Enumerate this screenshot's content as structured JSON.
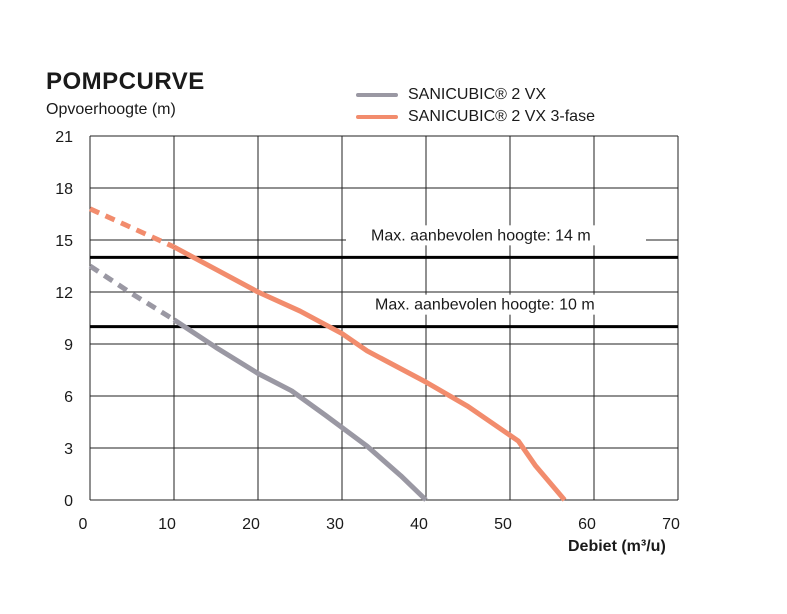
{
  "chart_data": {
    "type": "line",
    "title": "POMPCURVE",
    "ylabel": "Opvoerhoogte (m)",
    "xlabel": "Debiet (m³/u)",
    "xlim": [
      0,
      70
    ],
    "ylim": [
      0,
      21
    ],
    "xticks": [
      0,
      10,
      20,
      30,
      40,
      50,
      60,
      70
    ],
    "yticks": [
      0,
      3,
      6,
      9,
      12,
      15,
      18,
      21
    ],
    "grid": true,
    "legend_position": "top-right",
    "series": [
      {
        "name": "SANICUBIC® 2 VX",
        "color": "#9a98a3",
        "dashed_until_x": 10,
        "x": [
          0,
          5,
          10,
          15,
          20,
          24,
          28,
          33,
          37,
          40
        ],
        "y": [
          13.5,
          11.9,
          10.4,
          8.8,
          7.3,
          6.3,
          4.9,
          3.1,
          1.4,
          0
        ]
      },
      {
        "name": "SANICUBIC® 2 VX 3-fase",
        "color": "#f28c6d",
        "dashed_until_x": 10,
        "x": [
          0,
          5,
          10,
          15,
          20,
          25,
          30,
          33,
          40,
          45,
          51,
          53,
          56.5
        ],
        "y": [
          16.8,
          15.7,
          14.6,
          13.3,
          12.0,
          10.9,
          9.6,
          8.6,
          6.8,
          5.4,
          3.4,
          2.0,
          0
        ]
      }
    ],
    "reference_lines": [
      {
        "y": 14,
        "label": "Max. aanbevolen hoogte: 14 m"
      },
      {
        "y": 10,
        "label": "Max. aanbevolen hoogte: 10 m"
      }
    ]
  }
}
